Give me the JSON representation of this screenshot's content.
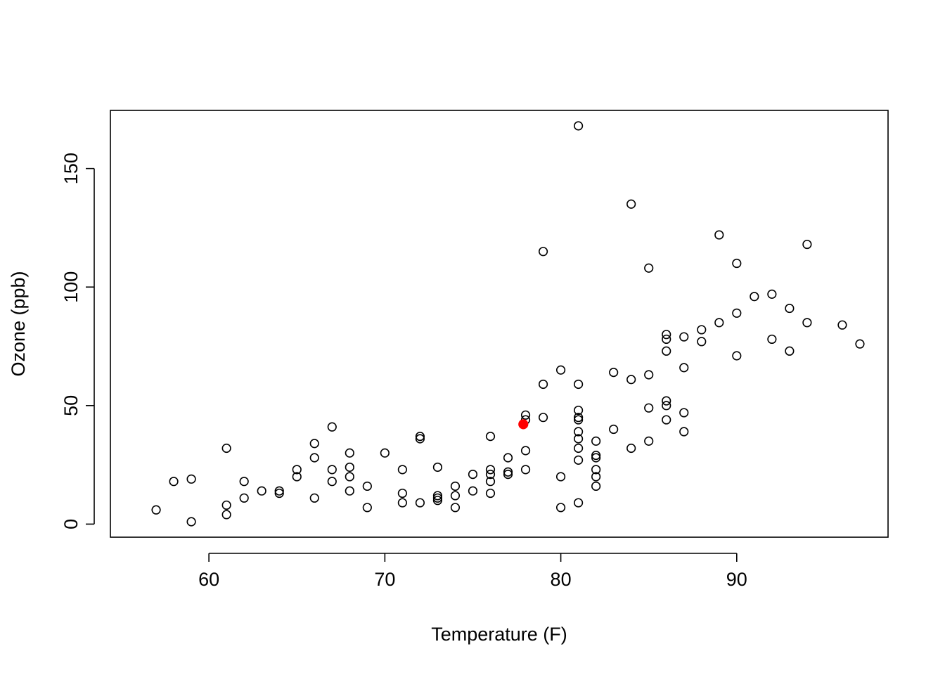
{
  "chart_data": {
    "type": "scatter",
    "title": "",
    "xlabel": "Temperature (F)",
    "ylabel": "Ozone (ppb)",
    "xlim": [
      54.4,
      98.6
    ],
    "ylim": [
      -5.52,
      174.52
    ],
    "xticks": [
      60,
      70,
      80,
      90
    ],
    "yticks": [
      0,
      50,
      100,
      150
    ],
    "grid": false,
    "legend": "none",
    "point_color": "#000000",
    "highlight_color": "#ff0000",
    "series": [
      {
        "marker": "open-circle",
        "points": [
          [
            57,
            6
          ],
          [
            58,
            18
          ],
          [
            59,
            19
          ],
          [
            59,
            1
          ],
          [
            61,
            32
          ],
          [
            61,
            8
          ],
          [
            61,
            4
          ],
          [
            62,
            18
          ],
          [
            62,
            11
          ],
          [
            63,
            14
          ],
          [
            64,
            14
          ],
          [
            64,
            13
          ],
          [
            65,
            23
          ],
          [
            65,
            20
          ],
          [
            66,
            34
          ],
          [
            66,
            28
          ],
          [
            66,
            11
          ],
          [
            67,
            41
          ],
          [
            67,
            23
          ],
          [
            67,
            18
          ],
          [
            68,
            30
          ],
          [
            68,
            24
          ],
          [
            68,
            20
          ],
          [
            68,
            14
          ],
          [
            69,
            16
          ],
          [
            69,
            7
          ],
          [
            70,
            30
          ],
          [
            71,
            23
          ],
          [
            71,
            13
          ],
          [
            71,
            9
          ],
          [
            72,
            37
          ],
          [
            72,
            36
          ],
          [
            72,
            9
          ],
          [
            73,
            24
          ],
          [
            73,
            12
          ],
          [
            73,
            11
          ],
          [
            73,
            10
          ],
          [
            74,
            16
          ],
          [
            74,
            12
          ],
          [
            74,
            7
          ],
          [
            75,
            21
          ],
          [
            75,
            14
          ],
          [
            76,
            37
          ],
          [
            76,
            23
          ],
          [
            76,
            21
          ],
          [
            76,
            18
          ],
          [
            76,
            13
          ],
          [
            77,
            28
          ],
          [
            77,
            22
          ],
          [
            77,
            21
          ],
          [
            78,
            46
          ],
          [
            78,
            44
          ],
          [
            78,
            31
          ],
          [
            78,
            23
          ],
          [
            79,
            115
          ],
          [
            79,
            59
          ],
          [
            79,
            45
          ],
          [
            80,
            65
          ],
          [
            80,
            20
          ],
          [
            80,
            7
          ],
          [
            81,
            168
          ],
          [
            81,
            59
          ],
          [
            81,
            48
          ],
          [
            81,
            45
          ],
          [
            81,
            44
          ],
          [
            81,
            39
          ],
          [
            81,
            36
          ],
          [
            81,
            32
          ],
          [
            81,
            27
          ],
          [
            81,
            9
          ],
          [
            82,
            35
          ],
          [
            82,
            29
          ],
          [
            82,
            28
          ],
          [
            82,
            23
          ],
          [
            82,
            20
          ],
          [
            82,
            16
          ],
          [
            83,
            64
          ],
          [
            83,
            40
          ],
          [
            84,
            135
          ],
          [
            84,
            61
          ],
          [
            84,
            32
          ],
          [
            85,
            108
          ],
          [
            85,
            63
          ],
          [
            85,
            49
          ],
          [
            85,
            35
          ],
          [
            86,
            80
          ],
          [
            86,
            78
          ],
          [
            86,
            73
          ],
          [
            86,
            52
          ],
          [
            86,
            50
          ],
          [
            86,
            44
          ],
          [
            87,
            79
          ],
          [
            87,
            66
          ],
          [
            87,
            47
          ],
          [
            87,
            39
          ],
          [
            88,
            82
          ],
          [
            88,
            77
          ],
          [
            89,
            122
          ],
          [
            89,
            85
          ],
          [
            90,
            110
          ],
          [
            90,
            89
          ],
          [
            90,
            71
          ],
          [
            91,
            96
          ],
          [
            92,
            97
          ],
          [
            92,
            78
          ],
          [
            93,
            91
          ],
          [
            93,
            73
          ],
          [
            94,
            118
          ],
          [
            94,
            85
          ],
          [
            96,
            84
          ],
          [
            97,
            76
          ]
        ]
      },
      {
        "marker": "filled-circle",
        "points": [
          [
            77.87,
            42.13
          ]
        ]
      }
    ]
  }
}
